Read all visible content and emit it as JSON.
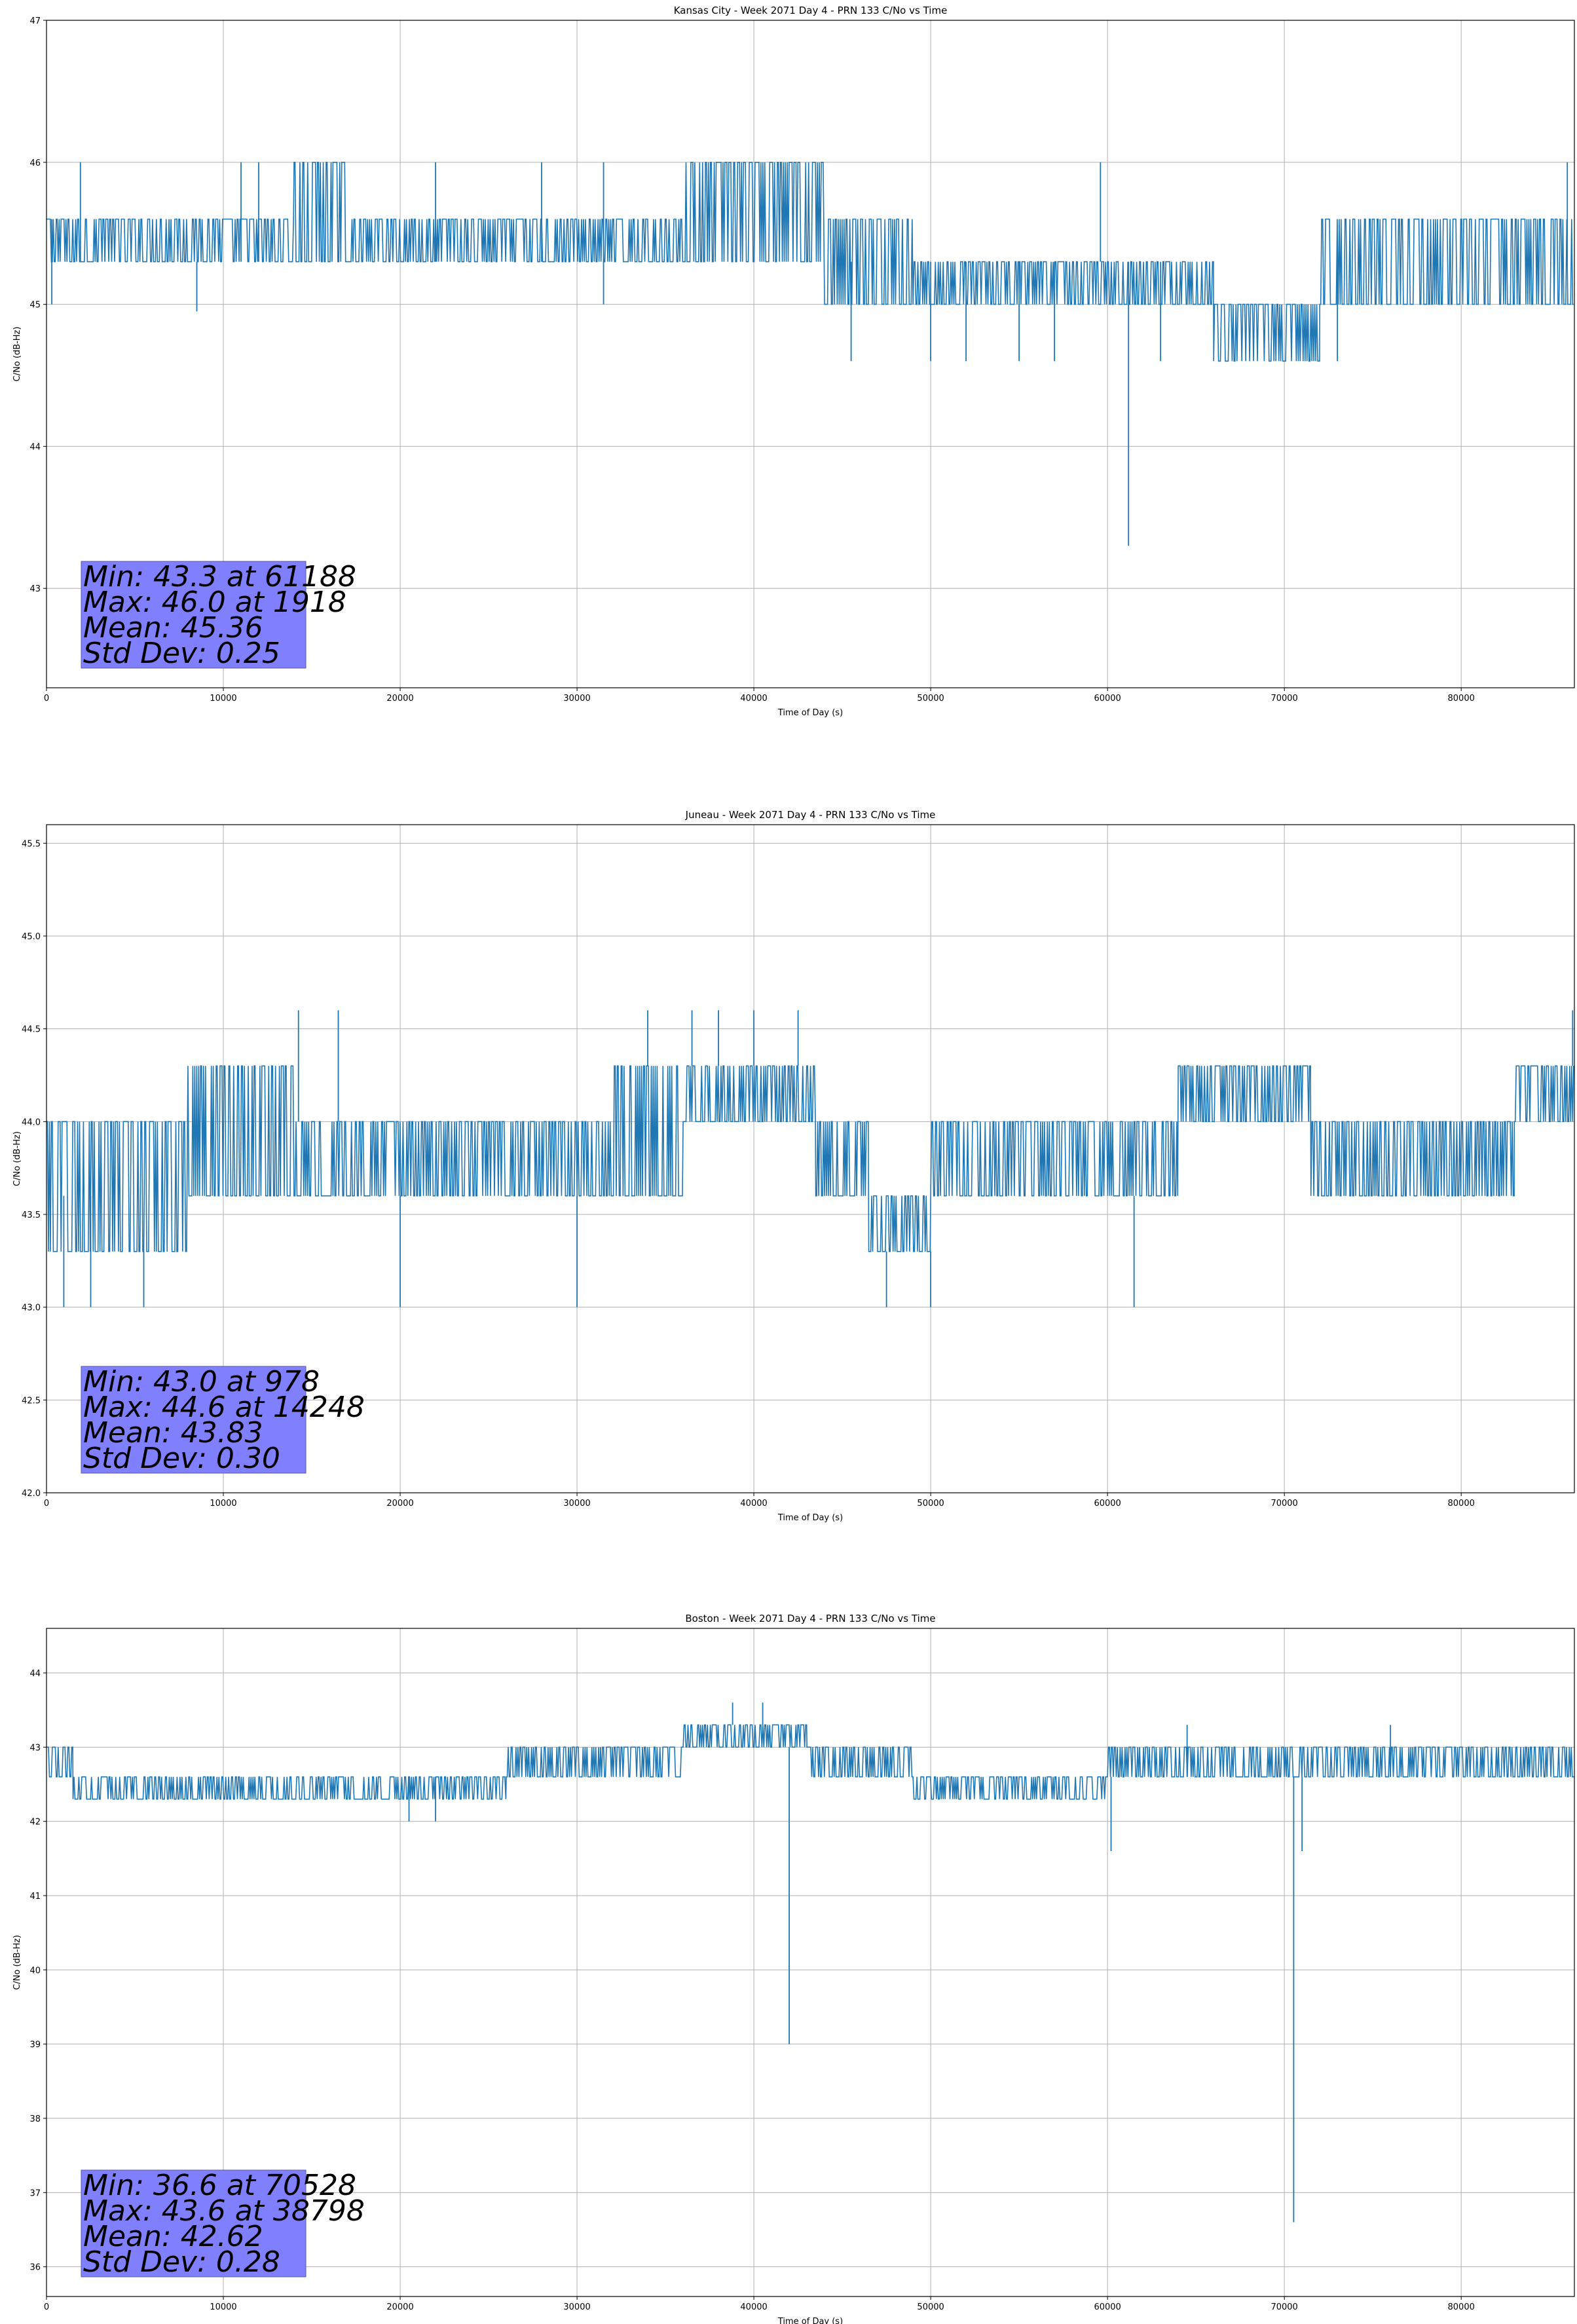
{
  "colors": {
    "series": "#1f77b4",
    "statbox": "#8080ff",
    "grid": "#b0b0b0"
  },
  "chart_data": [
    {
      "type": "line",
      "title": "Kansas City - Week 2071 Day 4 - PRN 133 C/No vs Time",
      "xlabel": "Time of Day (s)",
      "ylabel": "C/No (dB-Hz)",
      "xlim": [
        0,
        86400
      ],
      "ylim": [
        42.3,
        47
      ],
      "xticks": [
        0,
        10000,
        20000,
        30000,
        40000,
        50000,
        60000,
        70000,
        80000
      ],
      "yticks": [
        43,
        44,
        45,
        46,
        47
      ],
      "ytick_labels": [
        "43",
        "44",
        "45",
        "46",
        "47"
      ],
      "grid": true,
      "stats": [
        "Min: 43.3 at 61188",
        "Max: 46.0 at 1918",
        "Mean: 45.36",
        "Std Dev: 0.25"
      ],
      "segments": [
        {
          "x": [
            0,
            14000
          ],
          "lo": 45.3,
          "hi": 45.6
        },
        {
          "x": [
            14000,
            17000
          ],
          "lo": 45.3,
          "hi": 46.0
        },
        {
          "x": [
            17000,
            36000
          ],
          "lo": 45.3,
          "hi": 45.6
        },
        {
          "x": [
            36000,
            44000
          ],
          "lo": 45.3,
          "hi": 46.0
        },
        {
          "x": [
            44000,
            49000
          ],
          "lo": 45.0,
          "hi": 45.6
        },
        {
          "x": [
            49000,
            59500
          ],
          "lo": 45.0,
          "hi": 45.3
        },
        {
          "x": [
            59500,
            66000
          ],
          "lo": 45.0,
          "hi": 45.3
        },
        {
          "x": [
            66000,
            72000
          ],
          "lo": 44.6,
          "hi": 45.0
        },
        {
          "x": [
            72000,
            86400
          ],
          "lo": 45.0,
          "hi": 45.6
        }
      ],
      "spikes": [
        {
          "x": 300,
          "lo": 45.0,
          "hi": 45.6
        },
        {
          "x": 1918,
          "lo": 45.3,
          "hi": 46.0
        },
        {
          "x": 8500,
          "lo": 44.95,
          "hi": 45.3
        },
        {
          "x": 11000,
          "lo": 45.3,
          "hi": 46.0
        },
        {
          "x": 12000,
          "lo": 45.3,
          "hi": 46.0
        },
        {
          "x": 22000,
          "lo": 45.3,
          "hi": 46.0
        },
        {
          "x": 28000,
          "lo": 45.3,
          "hi": 46.0
        },
        {
          "x": 31500,
          "lo": 45.0,
          "hi": 46.0
        },
        {
          "x": 45500,
          "lo": 44.6,
          "hi": 45.3
        },
        {
          "x": 50000,
          "lo": 44.6,
          "hi": 45.3
        },
        {
          "x": 52000,
          "lo": 44.6,
          "hi": 45.3
        },
        {
          "x": 55000,
          "lo": 44.6,
          "hi": 45.3
        },
        {
          "x": 57000,
          "lo": 44.6,
          "hi": 45.3
        },
        {
          "x": 59600,
          "lo": 45.3,
          "hi": 46.0
        },
        {
          "x": 61188,
          "lo": 43.3,
          "hi": 45.3
        },
        {
          "x": 63000,
          "lo": 44.6,
          "hi": 45.3
        },
        {
          "x": 73000,
          "lo": 44.6,
          "hi": 45.3
        },
        {
          "x": 86000,
          "lo": 45.3,
          "hi": 46.0
        }
      ]
    },
    {
      "type": "line",
      "title": "Juneau - Week 2071 Day 4 - PRN 133 C/No vs Time",
      "xlabel": "Time of Day (s)",
      "ylabel": "C/No (dB-Hz)",
      "xlim": [
        0,
        86400
      ],
      "ylim": [
        42.0,
        45.6
      ],
      "xticks": [
        0,
        10000,
        20000,
        30000,
        40000,
        50000,
        60000,
        70000,
        80000
      ],
      "yticks": [
        42.0,
        42.5,
        43.0,
        43.5,
        44.0,
        44.5,
        45.0,
        45.5
      ],
      "ytick_labels": [
        "42.0",
        "42.5",
        "43.0",
        "43.5",
        "44.0",
        "44.5",
        "45.0",
        "45.5"
      ],
      "grid": true,
      "stats": [
        "Min: 43.0 at 978",
        "Max: 44.6 at 14248",
        "Mean: 43.83",
        "Std Dev: 0.30"
      ],
      "segments": [
        {
          "x": [
            0,
            8000
          ],
          "lo": 43.3,
          "hi": 44.0
        },
        {
          "x": [
            8000,
            14000
          ],
          "lo": 43.6,
          "hi": 44.3
        },
        {
          "x": [
            14000,
            32000
          ],
          "lo": 43.6,
          "hi": 44.0
        },
        {
          "x": [
            32000,
            36000
          ],
          "lo": 43.6,
          "hi": 44.3
        },
        {
          "x": [
            36000,
            43500
          ],
          "lo": 44.0,
          "hi": 44.3
        },
        {
          "x": [
            43500,
            46500
          ],
          "lo": 43.6,
          "hi": 44.0
        },
        {
          "x": [
            46500,
            50000
          ],
          "lo": 43.3,
          "hi": 43.6
        },
        {
          "x": [
            50000,
            64000
          ],
          "lo": 43.6,
          "hi": 44.0
        },
        {
          "x": [
            64000,
            71500
          ],
          "lo": 44.0,
          "hi": 44.3
        },
        {
          "x": [
            71500,
            83000
          ],
          "lo": 43.6,
          "hi": 44.0
        },
        {
          "x": [
            83000,
            86400
          ],
          "lo": 44.0,
          "hi": 44.3
        }
      ],
      "spikes": [
        {
          "x": 978,
          "lo": 43.0,
          "hi": 43.6
        },
        {
          "x": 2500,
          "lo": 43.0,
          "hi": 43.6
        },
        {
          "x": 5500,
          "lo": 43.0,
          "hi": 43.3
        },
        {
          "x": 14248,
          "lo": 44.0,
          "hi": 44.6
        },
        {
          "x": 16500,
          "lo": 44.0,
          "hi": 44.6
        },
        {
          "x": 20000,
          "lo": 43.0,
          "hi": 43.6
        },
        {
          "x": 30000,
          "lo": 43.0,
          "hi": 43.6
        },
        {
          "x": 34000,
          "lo": 44.3,
          "hi": 44.6
        },
        {
          "x": 36500,
          "lo": 44.3,
          "hi": 44.6
        },
        {
          "x": 38000,
          "lo": 44.3,
          "hi": 44.6
        },
        {
          "x": 40000,
          "lo": 44.3,
          "hi": 44.6
        },
        {
          "x": 42500,
          "lo": 44.3,
          "hi": 44.6
        },
        {
          "x": 47500,
          "lo": 43.0,
          "hi": 43.3
        },
        {
          "x": 50000,
          "lo": 43.0,
          "hi": 43.3
        },
        {
          "x": 61500,
          "lo": 43.0,
          "hi": 43.6
        },
        {
          "x": 86300,
          "lo": 44.3,
          "hi": 44.6
        }
      ]
    },
    {
      "type": "line",
      "title": "Boston - Week 2071 Day 4 - PRN 133 C/No vs Time",
      "xlabel": "Time of Day (s)",
      "ylabel": "C/No (dB-Hz)",
      "xlim": [
        0,
        86400
      ],
      "ylim": [
        35.6,
        44.6
      ],
      "xticks": [
        0,
        10000,
        20000,
        30000,
        40000,
        50000,
        60000,
        70000,
        80000
      ],
      "yticks": [
        36,
        37,
        38,
        39,
        40,
        41,
        42,
        43,
        44
      ],
      "ytick_labels": [
        "36",
        "37",
        "38",
        "39",
        "40",
        "41",
        "42",
        "43",
        "44"
      ],
      "grid": true,
      "stats": [
        "Min: 36.6 at 70528",
        "Max: 43.6 at 38798",
        "Mean: 42.62",
        "Std Dev: 0.28"
      ],
      "segments": [
        {
          "x": [
            0,
            1500
          ],
          "lo": 42.6,
          "hi": 43.0
        },
        {
          "x": [
            1500,
            26000
          ],
          "lo": 42.3,
          "hi": 42.6
        },
        {
          "x": [
            26000,
            36000
          ],
          "lo": 42.6,
          "hi": 43.0
        },
        {
          "x": [
            36000,
            43000
          ],
          "lo": 43.0,
          "hi": 43.3
        },
        {
          "x": [
            43000,
            49000
          ],
          "lo": 42.6,
          "hi": 43.0
        },
        {
          "x": [
            49000,
            60000
          ],
          "lo": 42.3,
          "hi": 42.6
        },
        {
          "x": [
            60000,
            70000
          ],
          "lo": 42.6,
          "hi": 43.0
        },
        {
          "x": [
            70000,
            86400
          ],
          "lo": 42.6,
          "hi": 43.0
        }
      ],
      "spikes": [
        {
          "x": 20500,
          "lo": 42.0,
          "hi": 42.6
        },
        {
          "x": 22000,
          "lo": 42.0,
          "hi": 42.6
        },
        {
          "x": 38798,
          "lo": 43.3,
          "hi": 43.6
        },
        {
          "x": 40500,
          "lo": 43.3,
          "hi": 43.6
        },
        {
          "x": 42000,
          "lo": 39.0,
          "hi": 43.0
        },
        {
          "x": 60200,
          "lo": 41.6,
          "hi": 42.6
        },
        {
          "x": 64500,
          "lo": 42.6,
          "hi": 43.3
        },
        {
          "x": 70528,
          "lo": 36.6,
          "hi": 42.6
        },
        {
          "x": 71000,
          "lo": 41.6,
          "hi": 42.6
        },
        {
          "x": 76000,
          "lo": 42.6,
          "hi": 43.3
        }
      ]
    }
  ]
}
